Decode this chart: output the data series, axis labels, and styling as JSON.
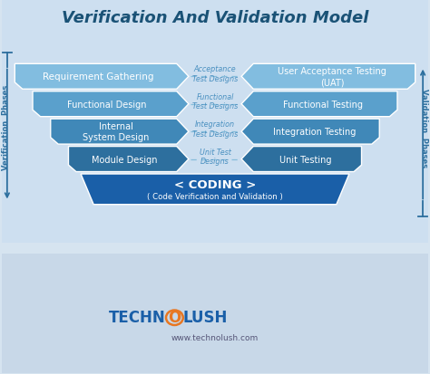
{
  "title": "Verification And Validation Model",
  "title_color": "#1a5276",
  "bg_color": "#d6e4f0",
  "bg_top": "#dce8f5",
  "left_boxes": [
    {
      "label": "Requirement Gathering",
      "color": "#82bde0"
    },
    {
      "label": "Functional Design",
      "color": "#5aa0cc"
    },
    {
      "label": "Internal\nSystem Design",
      "color": "#4088b8"
    },
    {
      "label": "Module Design",
      "color": "#2d6f9e"
    }
  ],
  "right_boxes": [
    {
      "label": "User Acceptance Testing\n(UAT)",
      "color": "#82bde0"
    },
    {
      "label": "Functional Testing",
      "color": "#5aa0cc"
    },
    {
      "label": "Integration Testing",
      "color": "#4088b8"
    },
    {
      "label": "Unit Testing",
      "color": "#2d6f9e"
    }
  ],
  "center_labels": [
    {
      "label": "Acceptance\nTest Designs"
    },
    {
      "label": "Functional\nTest Designs"
    },
    {
      "label": "Integration\nTest Designs"
    },
    {
      "label": "Unit Test\nDesigns"
    }
  ],
  "coding_label": "< CODING >",
  "coding_sublabel": "( Code Verification and Validation )",
  "coding_color": "#1a5fa8",
  "left_side_label": "Verification  Phases",
  "right_side_label": "Validation  Phases",
  "footer_tech": "TECHN",
  "footer_o_color": "#e87722",
  "footer_lush": "LUSH",
  "footer_url": "www.technolush.com",
  "dashed_color": "#7ab8d8",
  "side_arrow_color": "#2d6f9e",
  "center_text_color": "#4a90c0"
}
